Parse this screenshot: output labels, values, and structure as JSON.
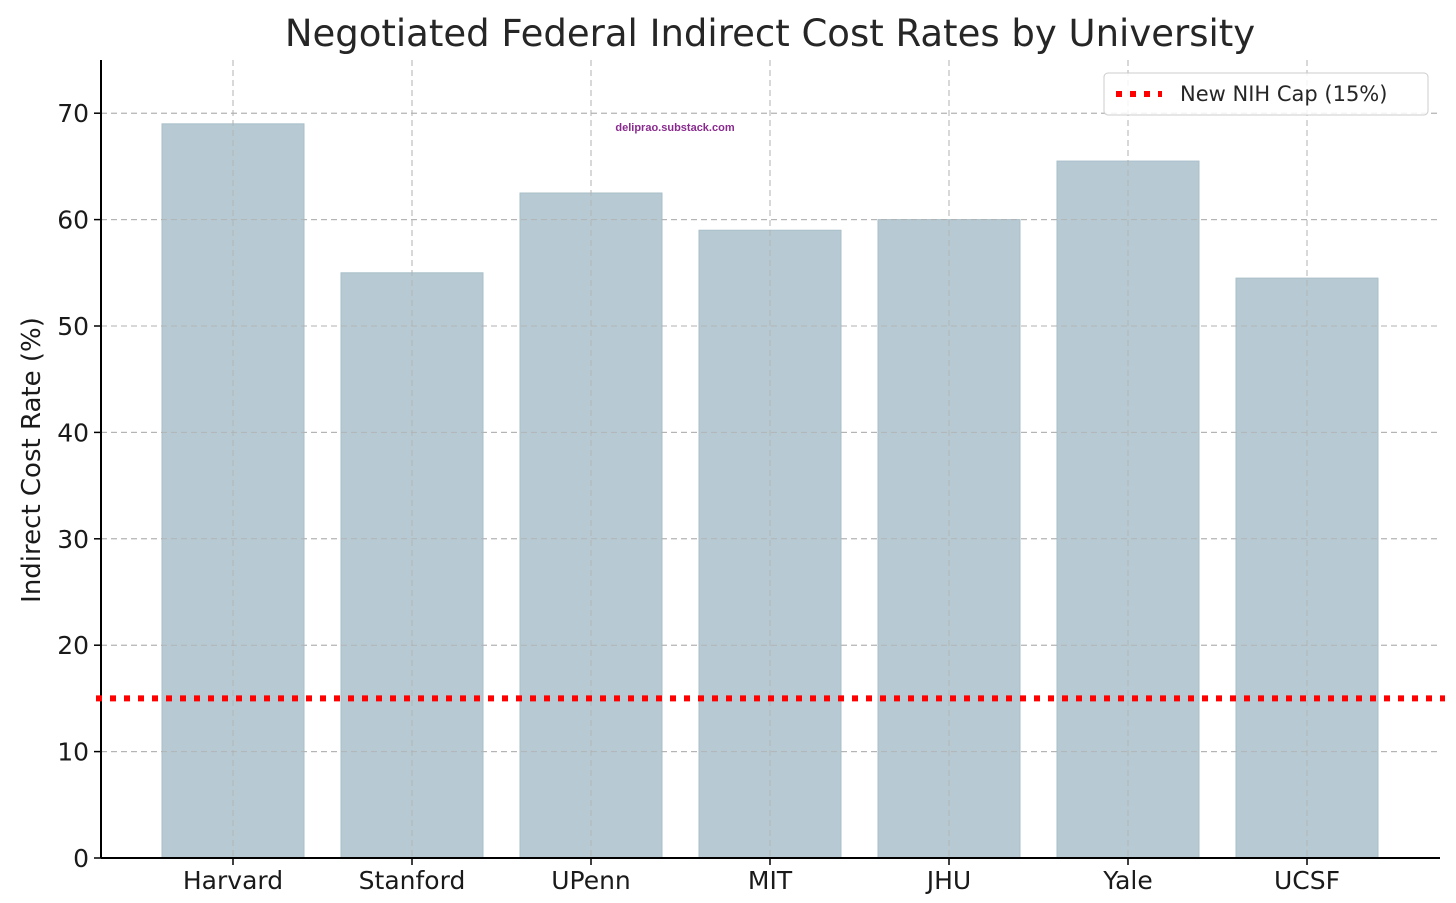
{
  "chart_data": {
    "type": "bar",
    "title": "Negotiated Federal Indirect Cost Rates by University",
    "xlabel": "",
    "ylabel": "Indirect Cost Rate (%)",
    "categories": [
      "Harvard",
      "Stanford",
      "UPenn",
      "MIT",
      "JHU",
      "Yale",
      "UCSF"
    ],
    "values": [
      69,
      55,
      62.5,
      59,
      60,
      65.5,
      54.5
    ],
    "ylim": [
      0,
      75
    ],
    "yticks": [
      0,
      10,
      20,
      30,
      40,
      50,
      60,
      70
    ],
    "grid": true,
    "bar_color": "#b7cad3",
    "reference_line": {
      "label": "New NIH Cap (15%)",
      "value": 15,
      "color": "#ff0000",
      "style": "dotted"
    },
    "legend_position": "top-right",
    "watermark": "deliprao.substack.com"
  }
}
